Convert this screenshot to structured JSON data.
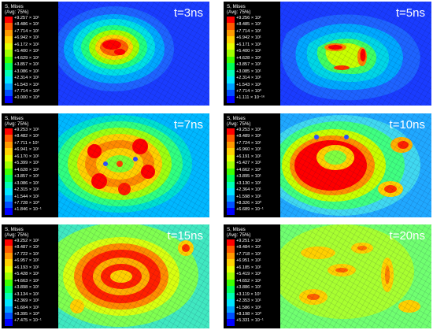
{
  "panels": [
    {
      "time": "t=3ns",
      "title": "S, Mises",
      "avg": "(Avg: 75%)",
      "legend": [
        "+9.257 × 10¹",
        "+8.486 × 10¹",
        "+7.714 × 10¹",
        "+6.942 × 10¹",
        "+6.172 × 10¹",
        "+5.400 × 10¹",
        "+4.629 × 10¹",
        "+3.857 × 10¹",
        "+3.086 × 10¹",
        "+2.314 × 10¹",
        "+1.543 × 10¹",
        "+7.714 × 10⁰",
        "+0.000 × 10⁰"
      ]
    },
    {
      "time": "t=5ns",
      "title": "S, Mises",
      "avg": "(Avg: 75%)",
      "legend": [
        "+9.256 × 10¹",
        "+8.485 × 10¹",
        "+7.714 × 10¹",
        "+6.942 × 10¹",
        "+6.171 × 10¹",
        "+5.400 × 10¹",
        "+4.628 × 10¹",
        "+3.857 × 10¹",
        "+3.085 × 10¹",
        "+2.314 × 10¹",
        "+1.543 × 10¹",
        "+7.714 × 10⁰",
        "+1.111 × 10⁻¹⁶"
      ]
    },
    {
      "time": "t=7ns",
      "title": "S, Mises",
      "avg": "(Avg: 75%)",
      "legend": [
        "+9.253 × 10¹",
        "+8.482 × 10¹",
        "+7.711 × 10¹",
        "+6.941 × 10¹",
        "+6.170 × 10¹",
        "+5.399 × 10¹",
        "+4.628 × 10¹",
        "+3.857 × 10¹",
        "+3.086 × 10¹",
        "+2.315 × 10¹",
        "+1.544 × 10¹",
        "+7.728 × 10⁰",
        "+1.846 × 10⁻¹"
      ]
    },
    {
      "time": "t=10ns",
      "title": "S, Mises",
      "avg": "(Avg: 75%)",
      "legend": [
        "+9.253 × 10¹",
        "+8.489 × 10¹",
        "+7.724 × 10¹",
        "+6.960 × 10¹",
        "+6.191 × 10¹",
        "+5.427 × 10¹",
        "+4.662 × 10¹",
        "+3.895 × 10¹",
        "+3.130 × 10¹",
        "+2.364 × 10¹",
        "+1.598 × 10¹",
        "+8.326 × 10⁰",
        "+6.689 × 10⁻¹"
      ]
    },
    {
      "time": "t=15ns",
      "title": "S, Mises",
      "avg": "(Avg: 75%)",
      "legend": [
        "+9.252 × 10¹",
        "+8.487 × 10¹",
        "+7.722 × 10¹",
        "+6.957 × 10¹",
        "+6.193 × 10¹",
        "+5.428 × 10¹",
        "+4.663 × 10¹",
        "+3.898 × 10¹",
        "+3.134 × 10¹",
        "+2.369 × 10¹",
        "+1.604 × 10¹",
        "+8.395 × 10⁰",
        "+7.475 × 10⁻¹"
      ]
    },
    {
      "time": "t=20ns",
      "title": "S, Mises",
      "avg": "(Avg: 75%)",
      "legend": [
        "+9.251 × 10¹",
        "+8.484 × 10¹",
        "+7.718 × 10¹",
        "+6.951 × 10¹",
        "+6.185 × 10¹",
        "+5.419 × 10¹",
        "+4.652 × 10¹",
        "+3.886 × 10¹",
        "+3.119 × 10¹",
        "+2.353 × 10¹",
        "+1.586 × 10¹",
        "+8.198 × 10⁰",
        "+5.331 × 10⁻¹"
      ]
    }
  ],
  "colors": {
    "scale": [
      "#ff0000",
      "#ff5a00",
      "#ff9900",
      "#ffd200",
      "#e6ff00",
      "#a0ff00",
      "#3cff00",
      "#00ff5a",
      "#00ffb4",
      "#00e6ff",
      "#00a0ff",
      "#0050ff",
      "#0000ff"
    ],
    "background_field": "#1a3cff",
    "mesh": "#0a0a40"
  }
}
